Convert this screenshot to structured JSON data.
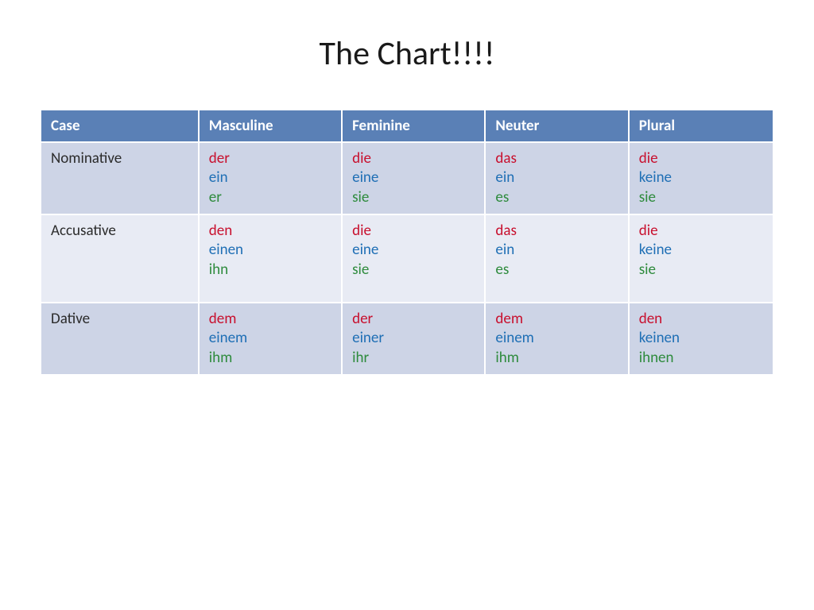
{
  "title": "The Chart!!!!",
  "table": {
    "type": "table",
    "header_bg": "#5a80b6",
    "header_text_color": "#ffffff",
    "row_bg_alt": [
      "#cdd4e6",
      "#e8ebf4"
    ],
    "line_colors": [
      "#c8102e",
      "#1f6fb5",
      "#2e8b3d"
    ],
    "columns": [
      "Case",
      "Masculine",
      "Feminine",
      "Neuter",
      "Plural"
    ],
    "col_widths_pct": [
      21.5,
      19.6,
      19.6,
      19.6,
      19.7
    ],
    "rows": [
      {
        "label": "Nominative",
        "cells": [
          [
            "der",
            "ein",
            "er"
          ],
          [
            "die",
            "eine",
            "sie"
          ],
          [
            "das",
            "ein",
            "es"
          ],
          [
            "die",
            "keine",
            "sie"
          ]
        ]
      },
      {
        "label": "Accusative",
        "extra_pad_bottom": 28,
        "cells": [
          [
            "den",
            "einen",
            "ihn"
          ],
          [
            "die",
            "eine",
            "sie"
          ],
          [
            "das",
            "ein",
            "es"
          ],
          [
            "die",
            "keine",
            "sie"
          ]
        ]
      },
      {
        "label": "Dative",
        "cells": [
          [
            "dem",
            "einem",
            "ihm"
          ],
          [
            "der",
            "einer",
            "ihr"
          ],
          [
            "dem",
            "einem",
            "ihm"
          ],
          [
            "den",
            "keinen",
            "ihnen"
          ]
        ]
      }
    ]
  }
}
